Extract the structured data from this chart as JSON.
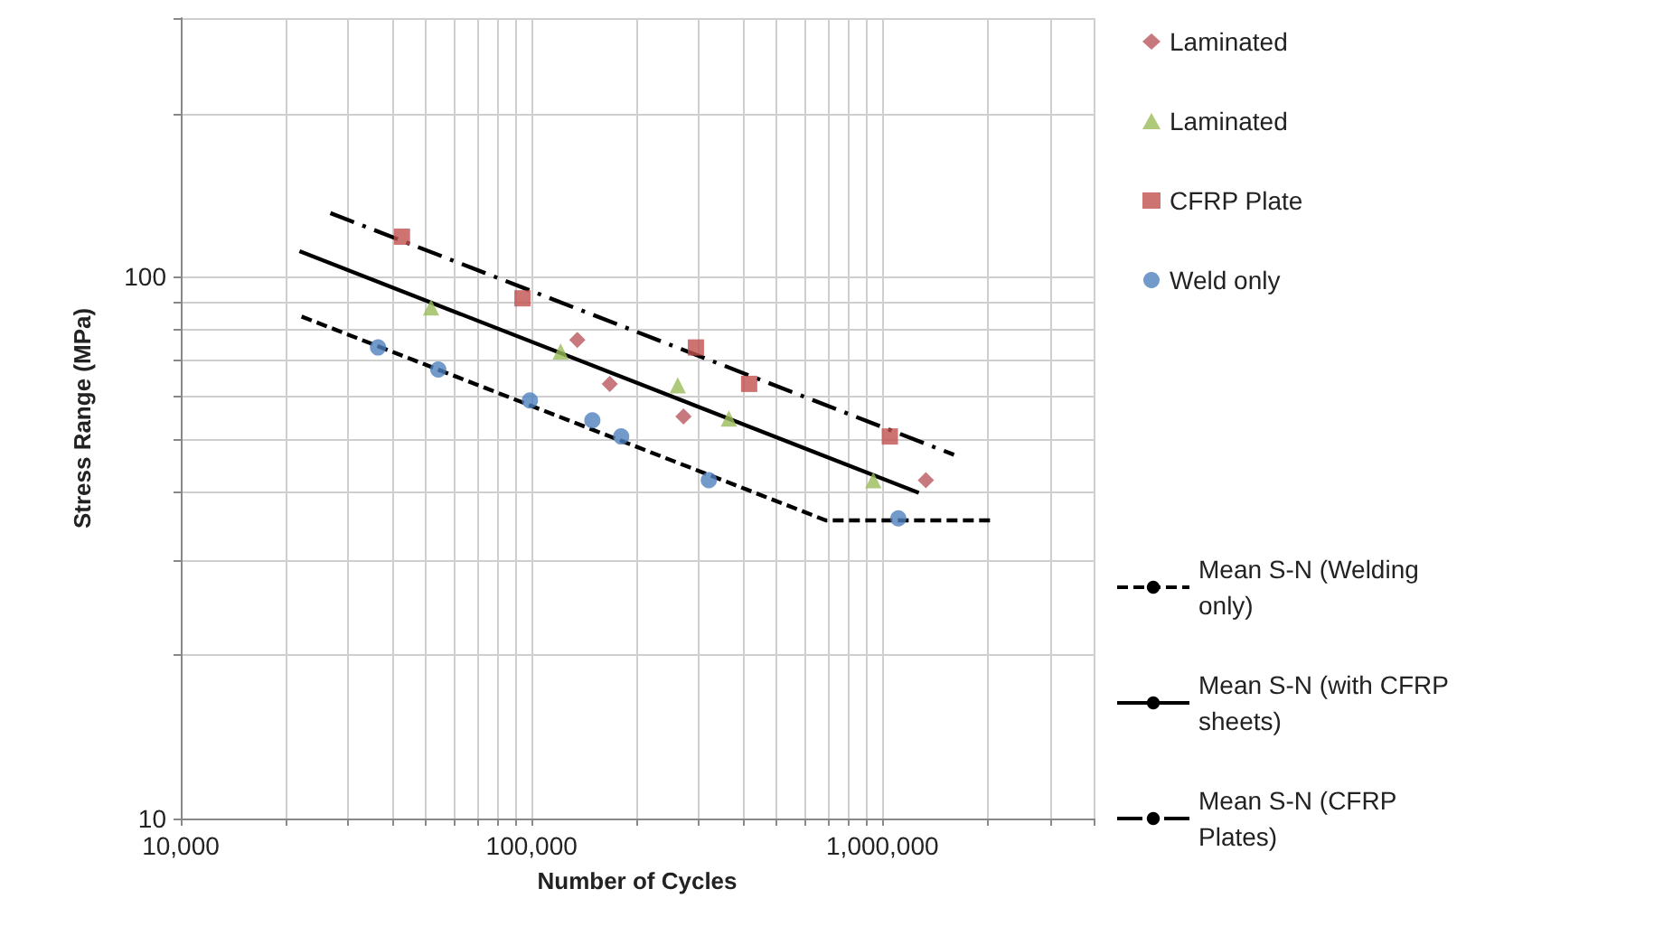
{
  "chart_data": {
    "type": "scatter",
    "xlabel": "Number of Cycles",
    "ylabel": "Stress Range (MPa)",
    "log": "xy",
    "grid": true,
    "legend": "right",
    "xlim": [
      10000,
      4000000
    ],
    "ylim": [
      10,
      300
    ],
    "xticks": [
      {
        "value": 10000,
        "label": "10,000"
      },
      {
        "value": 20000,
        "label": null
      },
      {
        "value": 30000,
        "label": null
      },
      {
        "value": 40000,
        "label": null
      },
      {
        "value": 50000,
        "label": null
      },
      {
        "value": 60000,
        "label": null
      },
      {
        "value": 70000,
        "label": null
      },
      {
        "value": 80000,
        "label": null
      },
      {
        "value": 90000,
        "label": null
      },
      {
        "value": 100000,
        "label": "100,000"
      },
      {
        "value": 200000,
        "label": null
      },
      {
        "value": 300000,
        "label": null
      },
      {
        "value": 400000,
        "label": null
      },
      {
        "value": 500000,
        "label": null
      },
      {
        "value": 600000,
        "label": null
      },
      {
        "value": 700000,
        "label": null
      },
      {
        "value": 800000,
        "label": null
      },
      {
        "value": 900000,
        "label": null
      },
      {
        "value": 1000000,
        "label": "1,000,000"
      },
      {
        "value": 2000000,
        "label": null
      },
      {
        "value": 3000000,
        "label": null
      },
      {
        "value": 4000000,
        "label": null
      }
    ],
    "yticks": [
      10,
      {
        "value": 20,
        "label": null
      },
      {
        "value": 30,
        "label": null
      },
      {
        "value": 40,
        "label": null
      },
      {
        "value": 50,
        "label": null
      },
      {
        "value": 60,
        "label": null
      },
      {
        "value": 70,
        "label": null
      },
      {
        "value": 80,
        "label": null
      },
      {
        "value": 90,
        "label": null
      },
      100,
      {
        "value": 200,
        "label": null
      },
      {
        "value": 300,
        "label": null
      }
    ],
    "series": [
      {
        "name": "Laminated",
        "marker": "diamond",
        "color": "#b9575e",
        "x": [
          135000,
          167000,
          271000,
          1330000
        ],
        "values": [
          76.4,
          63.4,
          55.2,
          42.1
        ]
      },
      {
        "name": "Laminated",
        "marker": "triangle",
        "color": "#9bbb59",
        "x": [
          51700,
          121000,
          261000,
          365000,
          942000
        ],
        "values": [
          87.7,
          72.8,
          63,
          54.7,
          42.1
        ]
      },
      {
        "name": "CFRP Plate",
        "marker": "square",
        "color": "#c0504d",
        "x": [
          42700,
          94200,
          294000,
          417000,
          1050000
        ],
        "values": [
          118.5,
          91.2,
          74,
          63.4,
          50.7
        ]
      },
      {
        "name": "Weld only",
        "marker": "circle",
        "color": "#4f81bd",
        "x": [
          36500,
          54200,
          98900,
          149000,
          180000,
          320000,
          1110000
        ],
        "values": [
          74,
          67.4,
          59.1,
          54.3,
          50.7,
          42.1,
          35.8
        ]
      },
      {
        "name": "Mean S-N (Welding only)",
        "type": "line",
        "line_style": "dashed",
        "marker": "none",
        "color": "#000000",
        "x": [
          22100,
          690000,
          2030000
        ],
        "values": [
          84.4,
          35.5,
          35.5
        ]
      },
      {
        "name": "Mean S-N (with CFRP sheets)",
        "type": "line",
        "line_style": "solid",
        "marker": "none",
        "color": "#000000",
        "x": [
          21800,
          1270000
        ],
        "values": [
          111.4,
          39.9
        ]
      },
      {
        "name": "Mean S-N (CFRP Plates)",
        "type": "line",
        "line_style": "dashdot",
        "marker": "none",
        "color": "#000000",
        "x": [
          26700,
          1600000
        ],
        "values": [
          131,
          46.9
        ]
      }
    ]
  }
}
